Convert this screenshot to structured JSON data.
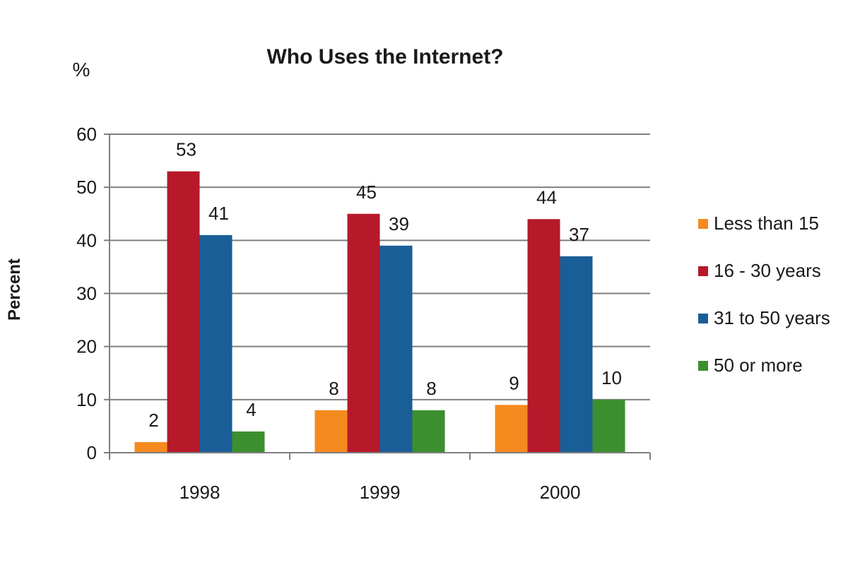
{
  "chart_data": {
    "type": "bar",
    "title": "Who Uses the Internet?",
    "unit_label": "%",
    "xlabel": "",
    "ylabel": "Percent",
    "categories": [
      "1998",
      "1999",
      "2000"
    ],
    "series": [
      {
        "name": "Less than 15",
        "color": "#f58a1f",
        "values": [
          2,
          8,
          9
        ]
      },
      {
        "name": "16 - 30 years",
        "color": "#b5192a",
        "values": [
          53,
          45,
          44
        ]
      },
      {
        "name": "31 to 50 years",
        "color": "#1a5e98",
        "values": [
          41,
          39,
          37
        ]
      },
      {
        "name": "50 or more",
        "color": "#3c8f2e",
        "values": [
          4,
          8,
          10
        ]
      }
    ],
    "ylim": [
      0,
      60
    ],
    "yticks": [
      "0",
      "10",
      "20",
      "30",
      "40",
      "50",
      "60"
    ],
    "grid": true,
    "legend_position": "right",
    "data_labels": true
  }
}
